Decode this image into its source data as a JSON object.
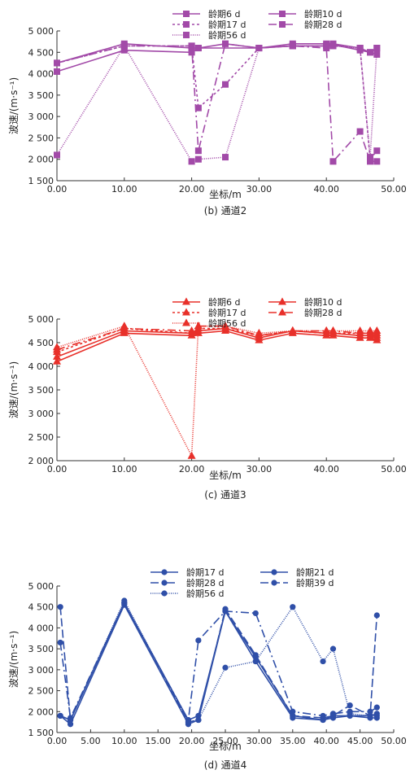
{
  "chart_data": [
    {
      "type": "line",
      "caption": "(b) 通道2",
      "color": "#a24aa8",
      "marker": "square",
      "xlabel": "坐标/m",
      "ylabel": "波速/(m·s⁻¹)",
      "xlim": [
        0,
        50
      ],
      "ylim": [
        1500,
        5000
      ],
      "xticks": [
        "0.00",
        "10.00",
        "20.00",
        "30.00",
        "40.00",
        "50.00"
      ],
      "xtick_values": [
        0,
        10,
        20,
        30,
        40,
        50
      ],
      "yticks": [
        "1 500",
        "2 000",
        "2 500",
        "3 000",
        "3 500",
        "4 000",
        "4 500",
        "5 000"
      ],
      "ytick_values": [
        1500,
        2000,
        2500,
        3000,
        3500,
        4000,
        4500,
        5000
      ],
      "series": [
        {
          "name": "龄期6 d",
          "dash": "",
          "x": [
            0,
            10,
            20,
            21,
            30,
            35,
            40,
            41,
            45,
            46.5,
            47.5
          ],
          "y": [
            4050,
            4550,
            4500,
            4600,
            4600,
            4650,
            4650,
            4680,
            4550,
            4500,
            4450
          ]
        },
        {
          "name": "龄期10 d",
          "dash": "",
          "x": [
            0,
            10,
            20,
            21,
            25,
            30,
            35,
            40,
            41,
            45,
            46.5,
            47.5
          ],
          "y": [
            4250,
            4700,
            4600,
            4600,
            4700,
            4600,
            4700,
            4700,
            4700,
            4600,
            4500,
            4600
          ]
        },
        {
          "name": "龄期17 d",
          "dash": "3,3",
          "x": [
            0,
            10,
            20,
            21,
            25,
            30,
            35,
            40,
            41,
            45,
            46.5,
            47.5
          ],
          "y": [
            4250,
            4650,
            4650,
            3200,
            3750,
            4600,
            4650,
            4650,
            4650,
            4600,
            2000,
            2200
          ]
        },
        {
          "name": "龄期28 d",
          "dash": "10,4,2,4",
          "x": [
            0,
            10,
            20,
            21,
            25,
            30,
            35,
            40,
            41,
            45,
            46.5,
            47.5
          ],
          "y": [
            4250,
            4650,
            4650,
            2200,
            4700,
            4600,
            4650,
            4600,
            1950,
            2650,
            1950,
            1950
          ]
        },
        {
          "name": "龄期56 d",
          "dash": "1,1.5",
          "x": [
            0,
            10,
            20,
            21,
            25,
            30,
            35,
            40,
            41,
            45,
            46.5,
            47.5
          ],
          "y": [
            2100,
            4650,
            1950,
            2000,
            2050,
            4600,
            4650,
            4650,
            4650,
            4600,
            2050,
            4600
          ]
        }
      ]
    },
    {
      "type": "line",
      "caption": "(c) 通道3",
      "color": "#e8302a",
      "marker": "triangle",
      "xlabel": "坐标/m",
      "ylabel": "波速/(m·s⁻¹)",
      "xlim": [
        0,
        50
      ],
      "ylim": [
        2000,
        5000
      ],
      "xticks": [
        "0.00",
        "10.00",
        "20.00",
        "30.00",
        "40.00",
        "50.00"
      ],
      "xtick_values": [
        0,
        10,
        20,
        30,
        40,
        50
      ],
      "yticks": [
        "2 000",
        "2 500",
        "3 000",
        "3 500",
        "4 000",
        "4 500",
        "5 000"
      ],
      "ytick_values": [
        2000,
        2500,
        3000,
        3500,
        4000,
        4500,
        5000
      ],
      "series": [
        {
          "name": "龄期6 d",
          "dash": "",
          "x": [
            0,
            10,
            20,
            21,
            25,
            30,
            35,
            40,
            41,
            45,
            46.5,
            47.5
          ],
          "y": [
            4100,
            4700,
            4650,
            4700,
            4750,
            4550,
            4700,
            4650,
            4650,
            4600,
            4600,
            4550
          ]
        },
        {
          "name": "龄期10 d",
          "dash": "",
          "x": [
            0,
            10,
            20,
            21,
            25,
            30,
            35,
            40,
            41,
            45,
            46.5,
            47.5
          ],
          "y": [
            4200,
            4750,
            4700,
            4750,
            4800,
            4600,
            4750,
            4700,
            4700,
            4650,
            4650,
            4600
          ]
        },
        {
          "name": "龄期17 d",
          "dash": "3,3",
          "x": [
            0,
            10,
            20,
            21,
            25,
            30,
            35,
            40,
            41,
            45,
            46.5,
            47.5
          ],
          "y": [
            4300,
            4800,
            4700,
            4800,
            4800,
            4650,
            4750,
            4700,
            4700,
            4700,
            4700,
            4650
          ]
        },
        {
          "name": "龄期28 d",
          "dash": "10,4,2,4",
          "x": [
            0,
            10,
            20,
            21,
            25,
            30,
            35,
            40,
            41,
            45,
            46.5,
            47.5
          ],
          "y": [
            4350,
            4800,
            4750,
            4850,
            4850,
            4650,
            4750,
            4750,
            4750,
            4700,
            4700,
            4700
          ]
        },
        {
          "name": "龄期56 d",
          "dash": "1,1.5",
          "x": [
            0,
            10,
            20,
            21,
            25,
            30,
            35,
            40,
            41,
            45,
            46.5,
            47.5
          ],
          "y": [
            4400,
            4850,
            2100,
            4850,
            4850,
            4700,
            4750,
            4750,
            4750,
            4750,
            4750,
            4750
          ]
        }
      ]
    },
    {
      "type": "line",
      "caption": "(d) 通道4",
      "color": "#2f4fa8",
      "marker": "circle",
      "xlabel": "坐标/m",
      "ylabel": "波速/(m·s⁻¹)",
      "xlim": [
        0,
        50
      ],
      "ylim": [
        1500,
        5000
      ],
      "xticks": [
        "0.00",
        "5.00",
        "10.00",
        "15.00",
        "20.00",
        "25.00",
        "30.00",
        "35.00",
        "40.00",
        "45.00",
        "50.00"
      ],
      "xtick_values": [
        0,
        5,
        10,
        15,
        20,
        25,
        30,
        35,
        40,
        45,
        50
      ],
      "yticks": [
        "1 500",
        "2 000",
        "2 500",
        "3 000",
        "3 500",
        "4 000",
        "4 500",
        "5 000"
      ],
      "ytick_values": [
        1500,
        2000,
        2500,
        3000,
        3500,
        4000,
        4500,
        5000
      ],
      "series": [
        {
          "name": "龄期17 d",
          "dash": "",
          "x": [
            0.5,
            2,
            10,
            19.5,
            21,
            25,
            29.5,
            35,
            39.5,
            41,
            43.5,
            46.5,
            47.5
          ],
          "y": [
            1900,
            1800,
            4600,
            1800,
            1900,
            4400,
            3300,
            1900,
            1800,
            1900,
            1900,
            1850,
            1850
          ]
        },
        {
          "name": "龄期21 d",
          "dash": "",
          "x": [
            0.5,
            2,
            10,
            19.5,
            21,
            25,
            29.5,
            35,
            39.5,
            41,
            43.5,
            46.5,
            47.5
          ],
          "y": [
            1900,
            1700,
            4550,
            1700,
            1800,
            4400,
            3200,
            1850,
            1800,
            1850,
            1900,
            1900,
            1950
          ]
        },
        {
          "name": "龄期28 d",
          "dash": "10,4,2,4",
          "x": [
            0.5,
            2,
            10,
            19.5,
            21,
            25,
            29.5,
            35,
            39.5,
            41,
            43.5,
            46.5,
            47.5
          ],
          "y": [
            3650,
            1850,
            4600,
            1800,
            3700,
            4400,
            4350,
            2000,
            1900,
            1950,
            2000,
            2000,
            2100
          ]
        },
        {
          "name": "龄期39 d",
          "dash": "10,4",
          "x": [
            0.5,
            2,
            10,
            19.5,
            21,
            25,
            29.5,
            35,
            39.5,
            41,
            43.5,
            46.5,
            47.5
          ],
          "y": [
            4500,
            1800,
            4600,
            1750,
            1800,
            4450,
            3350,
            1900,
            1850,
            1900,
            2150,
            1900,
            4300
          ]
        },
        {
          "name": "龄期56 d",
          "dash": "1,1.5",
          "x": [
            0.5,
            2,
            10,
            19.5,
            21,
            25,
            29.5,
            35,
            39.5,
            41,
            43.5,
            46.5,
            47.5
          ],
          "y": [
            1900,
            1800,
            4650,
            1750,
            1800,
            3050,
            3200,
            4500,
            3200,
            3500,
            1950,
            1900,
            1900
          ]
        }
      ]
    }
  ]
}
